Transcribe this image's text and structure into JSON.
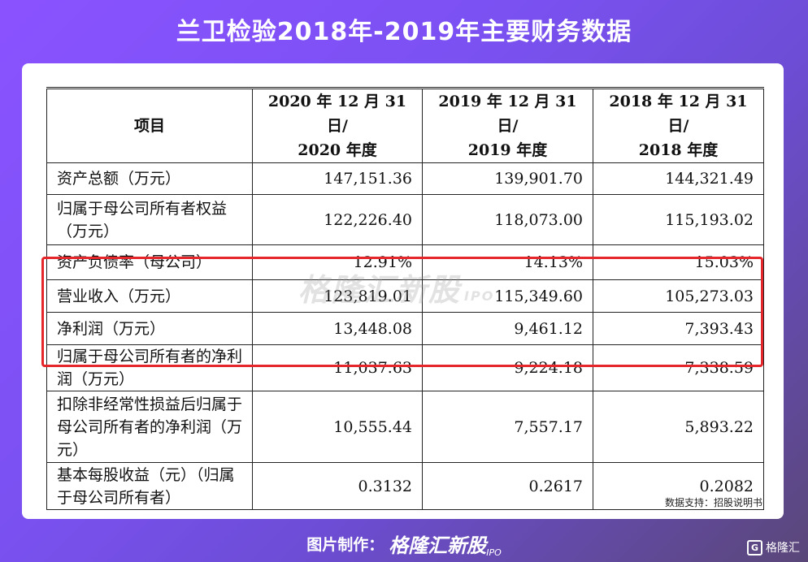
{
  "title": "兰卫检验2018年-2019年主要财务数据",
  "table": {
    "headers": [
      [
        "项目"
      ],
      [
        "2020 年 12 月 31 日/",
        "2020 年度"
      ],
      [
        "2019 年 12 月 31 日/",
        "2019 年度"
      ],
      [
        "2018 年 12 月 31 日/",
        "2018 年度"
      ]
    ],
    "rows": [
      {
        "item": "资产总额（万元）",
        "v2020": "147,151.36",
        "v2019": "139,901.70",
        "v2018": "144,321.49"
      },
      {
        "item": "归属于母公司所有者权益（万元）",
        "v2020": "122,226.40",
        "v2019": "118,073.00",
        "v2018": "115,193.02"
      },
      {
        "item": "资产负债率（母公司）",
        "v2020": "12.91%",
        "v2019": "14.13%",
        "v2018": "15.03%"
      },
      {
        "item": "营业收入（万元）",
        "v2020": "123,819.01",
        "v2019": "115,349.60",
        "v2018": "105,273.03"
      },
      {
        "item": "净利润（万元）",
        "v2020": "13,448.08",
        "v2019": "9,461.12",
        "v2018": "7,393.43"
      },
      {
        "item": "归属于母公司所有者的净利润（万元）",
        "v2020": "11,037.63",
        "v2019": "9,224.18",
        "v2018": "7,338.59"
      },
      {
        "item": "扣除非经常性损益后归属于母公司所有者的净利润（万元）",
        "v2020": "10,555.44",
        "v2019": "7,557.17",
        "v2018": "5,893.22"
      },
      {
        "item": "基本每股收益（元）（归属于母公司所有者）",
        "v2020": "0.3132",
        "v2019": "0.2617",
        "v2018": "0.2082"
      }
    ]
  },
  "watermark": {
    "text": "格隆汇新股",
    "sub": "IPO"
  },
  "source": "数据支持：招股说明书",
  "footer": {
    "label": "图片制作：",
    "brand": "格隆汇新股",
    "ipo": "IPO"
  },
  "corner_logo": {
    "text": "格隆汇",
    "icon": "G"
  },
  "colors": {
    "highlight_border": "#e5262a",
    "background_start": "#8a52ff",
    "background_end": "#5a4778"
  }
}
